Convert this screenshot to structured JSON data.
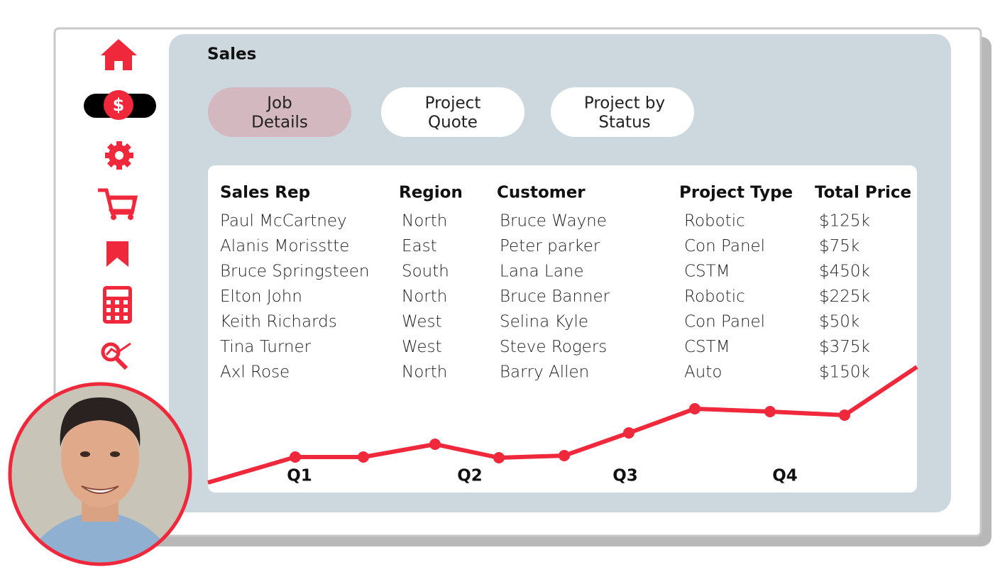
{
  "header": {
    "title": "Sales"
  },
  "tabs": [
    {
      "line1": "Job",
      "line2": "Details"
    },
    {
      "line1": "Project",
      "line2": "Quote"
    },
    {
      "line1": "Project by",
      "line2": "Status"
    }
  ],
  "table": {
    "columns": [
      "Sales Rep",
      "Region",
      "Customer",
      "Project Type",
      "Total Price"
    ],
    "rows": [
      [
        "Paul McCartney",
        "North",
        "Bruce Wayne",
        "Robotic",
        "$125k"
      ],
      [
        "Alanis Morisstte",
        "East",
        "Peter parker",
        "Con Panel",
        "$75k"
      ],
      [
        "Bruce Springsteen",
        "South",
        "Lana Lane",
        "CSTM",
        "$450k"
      ],
      [
        "Elton John",
        "North",
        "Bruce Banner",
        "Robotic",
        "$225k"
      ],
      [
        "Keith Richards",
        "West",
        "Selina Kyle",
        "Con Panel",
        "$50k"
      ],
      [
        "Tina Turner",
        "West",
        "Steve Rogers",
        "CSTM",
        "$375k"
      ],
      [
        "Axl Rose",
        "North",
        "Barry Allen",
        "Auto",
        "$150k"
      ]
    ]
  },
  "trend": {
    "quarters": [
      "Q1",
      "Q2",
      "Q3",
      "Q4"
    ]
  }
}
